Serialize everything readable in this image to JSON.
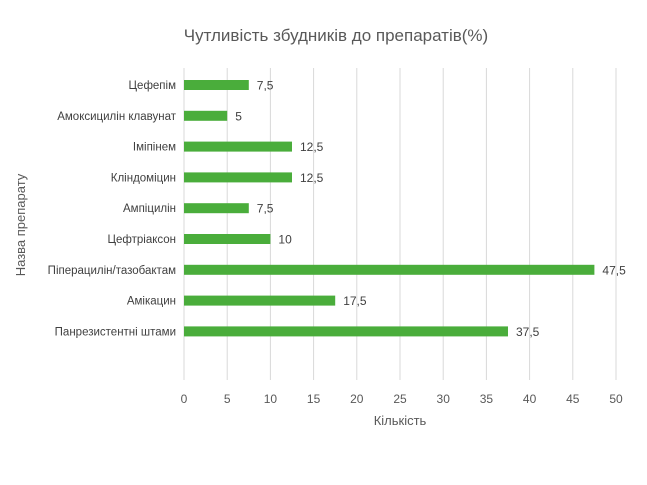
{
  "chart_data": {
    "type": "bar",
    "orientation": "horizontal",
    "title": "Чутливість збудників до препаратів(%)",
    "xlabel": "Кількість",
    "ylabel": "Назва препарату",
    "categories": [
      "Цефепім",
      "Амоксицилін клавунат",
      "Іміпінем",
      "Кліндоміцин",
      "Ампіцилін",
      "Цефтріаксон",
      "Піперацилін/тазобактам",
      "Амікацин",
      "Панрезистентні штами"
    ],
    "values": [
      7.5,
      5,
      12.5,
      12.5,
      7.5,
      10,
      47.5,
      17.5,
      37.5
    ],
    "data_labels": [
      "7,5",
      "5",
      "12,5",
      "12,5",
      "7,5",
      "10",
      "47,5",
      "17,5",
      "37,5"
    ],
    "xlim": [
      0,
      50
    ],
    "xticks": [
      0,
      5,
      10,
      15,
      20,
      25,
      30,
      35,
      40,
      45,
      50
    ],
    "grid": "vertical",
    "bar_color": "#4aad3b"
  }
}
